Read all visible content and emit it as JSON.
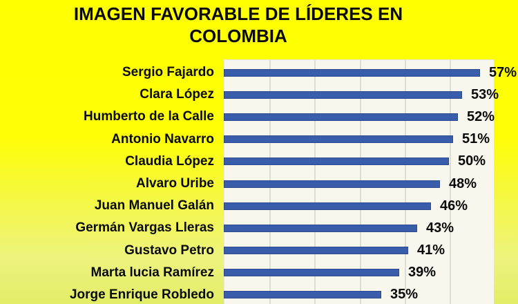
{
  "title": {
    "line1": "IMAGEN FAVORABLE DE LÍDERES EN",
    "line2": "COLOMBIA"
  },
  "chart_data": {
    "type": "bar",
    "orientation": "horizontal",
    "title": "IMAGEN FAVORABLE DE LÍDERES EN COLOMBIA",
    "categories": [
      "Sergio Fajardo",
      "Clara López",
      "Humberto de la Calle",
      "Antonio Navarro",
      "Claudia López",
      "Alvaro Uribe",
      "Juan Manuel Galán",
      "Germán Vargas Lleras",
      "Gustavo Petro",
      "Marta lucia Ramírez",
      "Jorge Enrique Robledo"
    ],
    "values": [
      57,
      53,
      52,
      51,
      50,
      48,
      46,
      43,
      41,
      39,
      35
    ],
    "value_labels": [
      "57%",
      "53%",
      "52%",
      "51%",
      "50%",
      "48%",
      "46%",
      "43%",
      "41%",
      "39%",
      "35%"
    ],
    "xlabel": "",
    "ylabel": "",
    "xlim": [
      0,
      60
    ],
    "gridline_interval": 10,
    "grid": "vertical-gridlines-on",
    "legend": "none",
    "colors": {
      "bar": "#3A5DAB",
      "bar_border": "#2D4A8C",
      "plot_background": "#F8F6ED",
      "gridline": "#DFDCD1",
      "background_top": "#FFFF00",
      "background_bottom": "#E2ED66",
      "text": "#0A0A0A"
    }
  }
}
